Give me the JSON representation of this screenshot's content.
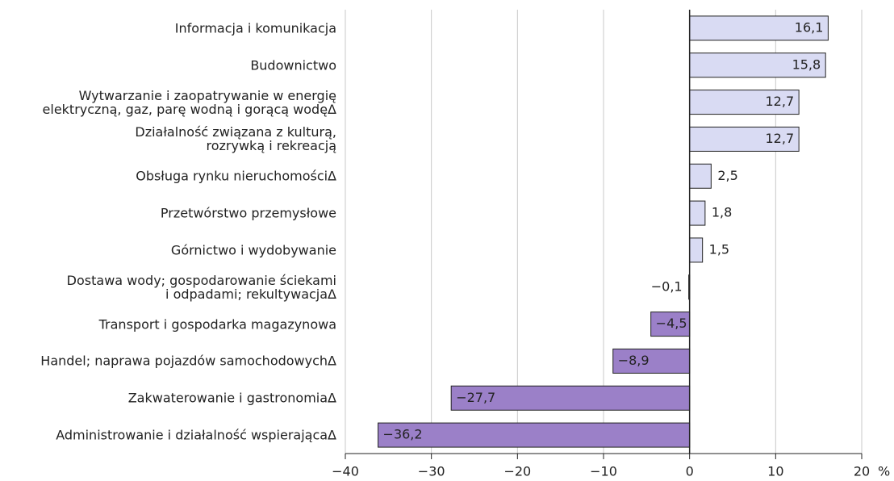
{
  "chart_data": {
    "type": "bar",
    "orientation": "horizontal",
    "categories": [
      "Informacja i komunikacja",
      "Budownictwo",
      "Wytwarzanie i zaopatrywanie w energię\nelektryczną, gaz, parę wodną i gorącą wodęΔ",
      "Działalność związana z kulturą,\nrozrywką i rekreacją",
      "Obsługa rynku nieruchomościΔ",
      "Przetwórstwo przemysłowe",
      "Górnictwo i wydobywanie",
      "Dostawa wody; gospodarowanie ściekami\ni odpadami; rekultywacjaΔ",
      "Transport i gospodarka magazynowa",
      "Handel; naprawa pojazdów samochodowychΔ",
      "Zakwaterowanie i gastronomiaΔ",
      "Administrowanie i działalność wspierającaΔ"
    ],
    "values": [
      16.1,
      15.8,
      12.7,
      12.7,
      2.5,
      1.8,
      1.5,
      -0.1,
      -4.5,
      -8.9,
      -27.7,
      -36.2
    ],
    "value_labels": [
      "16,1",
      "15,8",
      "12,7",
      "12,7",
      "2,5",
      "1,8",
      "1,5",
      "−0,1",
      "−4,5",
      "−8,9",
      "−27,7",
      "−36,2"
    ],
    "color_positive": "#d9dbf3",
    "color_negative": "#9b80c8",
    "xlim": [
      -40,
      20
    ],
    "xticks": [
      {
        "value": -40,
        "label": "−40"
      },
      {
        "value": -30,
        "label": "−30"
      },
      {
        "value": -20,
        "label": "−20"
      },
      {
        "value": -10,
        "label": "−10"
      },
      0,
      10,
      20
    ],
    "x_unit": "%",
    "grid": true
  }
}
